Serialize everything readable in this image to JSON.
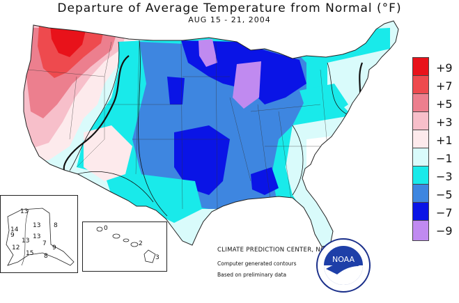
{
  "title": "Departure of Average Temperature from Normal (°F)",
  "subtitle": "AUG 15 - 21, 2004",
  "legend": [
    {
      "label": "+9",
      "color": "#e8121a"
    },
    {
      "label": "+7",
      "color": "#ee4a4e"
    },
    {
      "label": "+5",
      "color": "#ec7f8e"
    },
    {
      "label": "+3",
      "color": "#f7bfca"
    },
    {
      "label": "+1",
      "color": "#fdeaec"
    },
    {
      "label": "−1",
      "color": "#d9fbfb"
    },
    {
      "label": "−3",
      "color": "#19eaea"
    },
    {
      "label": "−5",
      "color": "#3e86e0"
    },
    {
      "label": "−7",
      "color": "#0a14e6"
    },
    {
      "label": "−9",
      "color": "#c08af0"
    }
  ],
  "credits": {
    "center": "CLIMATE PREDICTION CENTER, NOAA",
    "line2": "Computer generated contours",
    "line3": "Based on preliminary data"
  },
  "alaska_labels": [
    "13",
    "14",
    "13",
    "13",
    "13",
    "12",
    "7",
    "9",
    "8",
    "15",
    "8",
    "9"
  ],
  "hawaii_labels": [
    "0",
    "2",
    "3"
  ],
  "logo_text": "NOAA"
}
